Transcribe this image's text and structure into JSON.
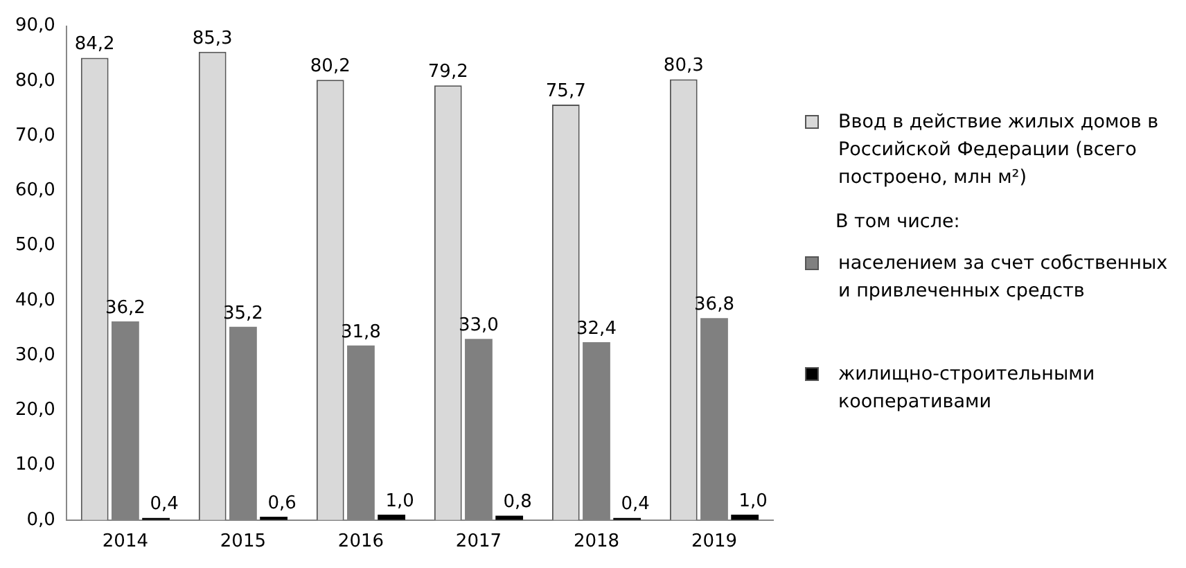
{
  "chart_data": {
    "type": "bar",
    "categories": [
      "2014",
      "2015",
      "2016",
      "2017",
      "2018",
      "2019"
    ],
    "series": [
      {
        "name": "Ввод в действие жилых домов в Российской Федерации (всего построено, млн м²)",
        "color": "#d9d9d9",
        "values": [
          84.2,
          85.3,
          80.2,
          79.2,
          75.7,
          80.3
        ],
        "value_labels": [
          "84,2",
          "85,3",
          "80,2",
          "79,2",
          "75,7",
          "80,3"
        ]
      },
      {
        "name": "населением за счет собственных и привлеченных средств",
        "color": "#808080",
        "values": [
          36.2,
          35.2,
          31.8,
          33.0,
          32.4,
          36.8
        ],
        "value_labels": [
          "36,2",
          "35,2",
          "31,8",
          "33,0",
          "32,4",
          "36,8"
        ]
      },
      {
        "name": "жилищно-строительными кооперативами",
        "color": "#000000",
        "values": [
          0.4,
          0.6,
          1.0,
          0.8,
          0.4,
          1.0
        ],
        "value_labels": [
          "0,4",
          "0,6",
          "1,0",
          "0,8",
          "0,4",
          "1,0"
        ]
      }
    ],
    "ylim": [
      0,
      90
    ],
    "yticks": [
      {
        "value": 0,
        "label": "0,0"
      },
      {
        "value": 10,
        "label": "10,0"
      },
      {
        "value": 20,
        "label": "20,0"
      },
      {
        "value": 30,
        "label": "30,0"
      },
      {
        "value": 40,
        "label": "40,0"
      },
      {
        "value": 50,
        "label": "50,0"
      },
      {
        "value": 60,
        "label": "60,0"
      },
      {
        "value": 70,
        "label": "70,0"
      },
      {
        "value": 80,
        "label": "80,0"
      },
      {
        "value": 90,
        "label": "90,0"
      }
    ],
    "legend_title": "В том числе:",
    "legend": "right",
    "grid": false
  }
}
